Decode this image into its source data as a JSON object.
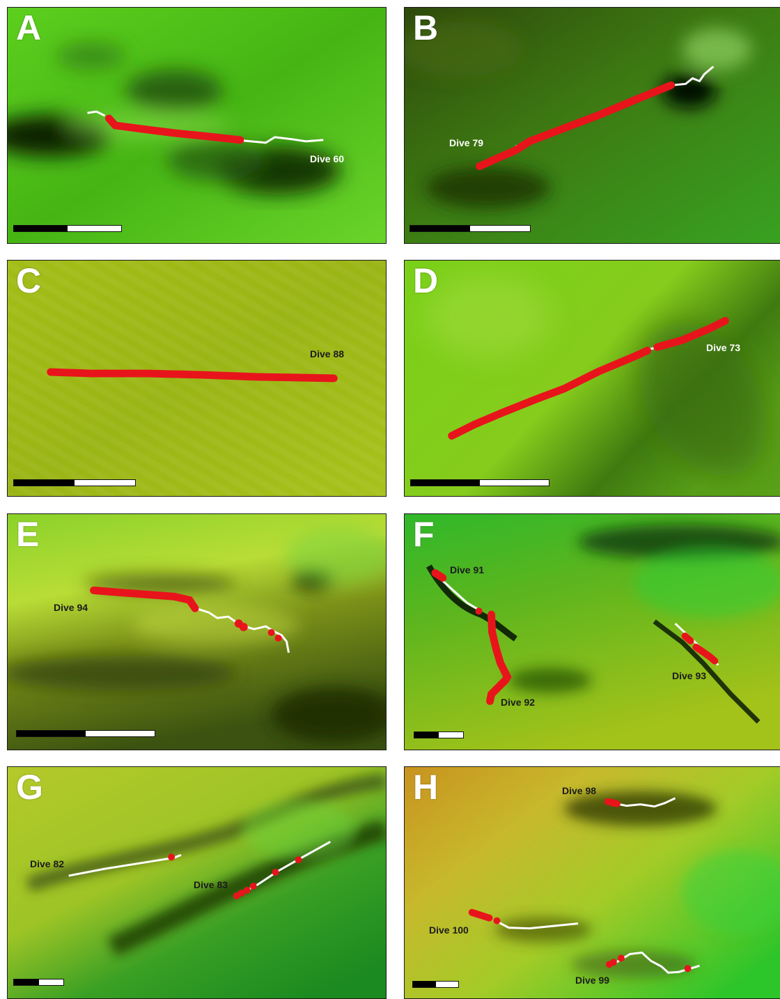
{
  "figure": {
    "panels": [
      {
        "id": "A",
        "letter": "A",
        "dives": [
          "Dive 60"
        ]
      },
      {
        "id": "B",
        "letter": "B",
        "dives": [
          "Dive 79"
        ]
      },
      {
        "id": "C",
        "letter": "C",
        "dives": [
          "Dive 88"
        ]
      },
      {
        "id": "D",
        "letter": "D",
        "dives": [
          "Dive 73"
        ]
      },
      {
        "id": "E",
        "letter": "E",
        "dives": [
          "Dive 94"
        ]
      },
      {
        "id": "F",
        "letter": "F",
        "dives": [
          "Dive 91",
          "Dive 92",
          "Dive 93"
        ]
      },
      {
        "id": "G",
        "letter": "G",
        "dives": [
          "Dive 82",
          "Dive 83"
        ]
      },
      {
        "id": "H",
        "letter": "H",
        "dives": [
          "Dive 98",
          "Dive 100",
          "Dive 99"
        ]
      }
    ]
  },
  "colors": {
    "track_red": "#e8141b",
    "track_white": "#ffffff",
    "scale_black": "#000000",
    "scale_white": "#ffffff"
  }
}
